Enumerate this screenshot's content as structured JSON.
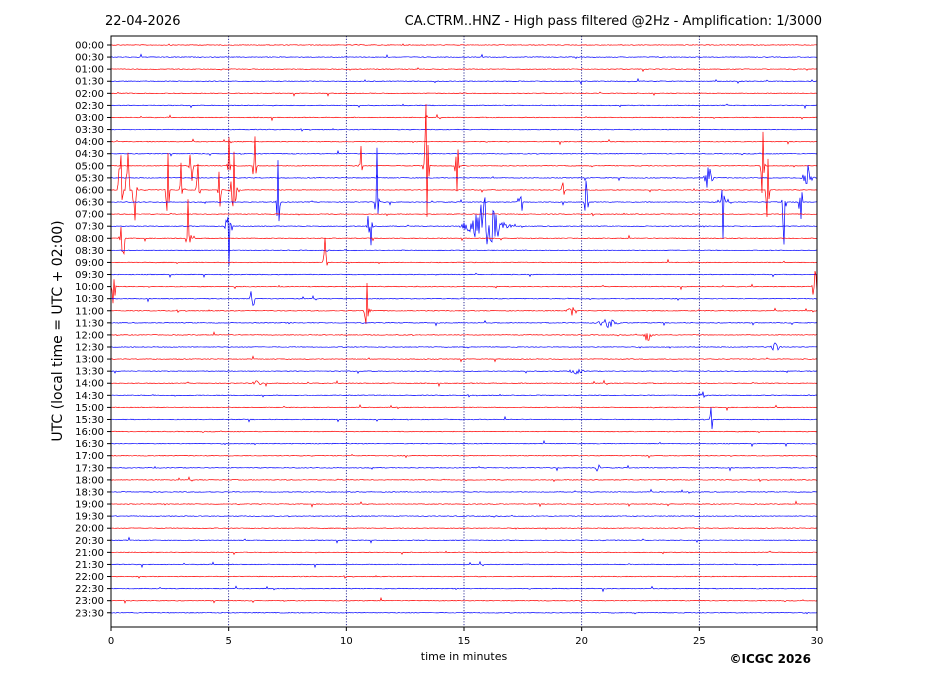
{
  "header": {
    "date": "22-04-2026",
    "title": "CA.CTRM..HNZ - High pass filtered @2Hz - Amplification: 1/3000"
  },
  "footer": {
    "copyright": "©ICGC 2026"
  },
  "chart_data": {
    "type": "line",
    "title": "CA.CTRM..HNZ - High pass filtered @2Hz - Amplification: 1/3000",
    "xlabel": "time in minutes",
    "ylabel": "UTC (local time = UTC + 02:00)",
    "xlim": [
      0,
      30
    ],
    "xticks": [
      0,
      5,
      10,
      15,
      20,
      25,
      30
    ],
    "grid_x": true,
    "row_colors": [
      "#ff0000",
      "#0000ff"
    ],
    "rows": [
      "00:00",
      "00:30",
      "01:00",
      "01:30",
      "02:00",
      "02:30",
      "03:00",
      "03:30",
      "04:00",
      "04:30",
      "05:00",
      "05:30",
      "06:00",
      "06:30",
      "07:00",
      "07:30",
      "08:00",
      "08:30",
      "09:00",
      "09:30",
      "10:00",
      "10:30",
      "11:00",
      "11:30",
      "12:00",
      "12:30",
      "13:00",
      "13:30",
      "14:00",
      "14:30",
      "15:00",
      "15:30",
      "16:00",
      "16:30",
      "17:00",
      "17:30",
      "18:00",
      "18:30",
      "19:00",
      "19:30",
      "20:00",
      "20:30",
      "21:00",
      "21:30",
      "22:00",
      "22:30",
      "23:00",
      "23:30"
    ],
    "events": [
      {
        "row": "05:00",
        "minute": 3.4,
        "amplitude": 1.0,
        "duration": 0.12
      },
      {
        "row": "05:00",
        "minute": 5.0,
        "amplitude": 0.9,
        "duration": 0.12
      },
      {
        "row": "05:00",
        "minute": 6.1,
        "amplitude": 0.8,
        "duration": 0.12
      },
      {
        "row": "05:00",
        "minute": 13.4,
        "amplitude": 1.3,
        "duration": 0.2
      },
      {
        "row": "05:00",
        "minute": 10.6,
        "amplitude": 0.9,
        "duration": 0.12
      },
      {
        "row": "05:00",
        "minute": 14.7,
        "amplitude": 1.0,
        "duration": 0.12
      },
      {
        "row": "05:00",
        "minute": 27.7,
        "amplitude": 1.0,
        "duration": 0.12
      },
      {
        "row": "05:30",
        "minute": 25.4,
        "amplitude": 0.3,
        "duration": 0.3
      },
      {
        "row": "05:30",
        "minute": 29.6,
        "amplitude": 0.3,
        "duration": 0.4
      },
      {
        "row": "06:00",
        "minute": 0.4,
        "amplitude": 1.2,
        "duration": 0.15
      },
      {
        "row": "06:00",
        "minute": 0.7,
        "amplitude": 1.0,
        "duration": 0.15
      },
      {
        "row": "06:00",
        "minute": 1.0,
        "amplitude": 0.8,
        "duration": 0.15
      },
      {
        "row": "06:00",
        "minute": 2.4,
        "amplitude": 1.0,
        "duration": 0.12
      },
      {
        "row": "06:00",
        "minute": 3.0,
        "amplitude": 0.9,
        "duration": 0.12
      },
      {
        "row": "06:00",
        "minute": 3.7,
        "amplitude": 0.8,
        "duration": 0.12
      },
      {
        "row": "06:00",
        "minute": 4.6,
        "amplitude": 0.6,
        "duration": 0.12
      },
      {
        "row": "06:00",
        "minute": 5.2,
        "amplitude": 0.9,
        "duration": 0.2
      },
      {
        "row": "06:00",
        "minute": 19.2,
        "amplitude": 0.9,
        "duration": 0.12
      },
      {
        "row": "06:00",
        "minute": 27.9,
        "amplitude": 0.8,
        "duration": 0.12
      },
      {
        "row": "06:30",
        "minute": 7.1,
        "amplitude": 1.0,
        "duration": 0.12
      },
      {
        "row": "06:30",
        "minute": 11.3,
        "amplitude": 1.0,
        "duration": 0.15
      },
      {
        "row": "06:30",
        "minute": 17.4,
        "amplitude": 1.0,
        "duration": 0.15
      },
      {
        "row": "06:30",
        "minute": 20.2,
        "amplitude": 0.8,
        "duration": 0.12
      },
      {
        "row": "06:30",
        "minute": 26.0,
        "amplitude": 1.0,
        "duration": 0.12
      },
      {
        "row": "06:30",
        "minute": 28.6,
        "amplitude": 1.0,
        "duration": 0.12
      },
      {
        "row": "06:30",
        "minute": 29.3,
        "amplitude": 1.0,
        "duration": 0.12
      },
      {
        "row": "07:30",
        "minute": 15.9,
        "amplitude": 0.5,
        "duration": 1.4
      },
      {
        "row": "07:30",
        "minute": 11.0,
        "amplitude": 0.6,
        "duration": 0.2
      },
      {
        "row": "07:30",
        "minute": 5.0,
        "amplitude": 0.9,
        "duration": 0.2
      },
      {
        "row": "08:00",
        "minute": 3.3,
        "amplitude": 1.0,
        "duration": 0.15
      },
      {
        "row": "08:00",
        "minute": 0.5,
        "amplitude": 0.6,
        "duration": 0.2
      },
      {
        "row": "09:00",
        "minute": 9.1,
        "amplitude": 0.8,
        "duration": 0.12
      },
      {
        "row": "10:00",
        "minute": 0.1,
        "amplitude": 0.6,
        "duration": 0.15
      },
      {
        "row": "10:00",
        "minute": 29.9,
        "amplitude": 0.7,
        "duration": 0.2
      },
      {
        "row": "10:30",
        "minute": 6.0,
        "amplitude": 0.6,
        "duration": 0.15
      },
      {
        "row": "11:00",
        "minute": 10.9,
        "amplitude": 0.8,
        "duration": 0.2
      },
      {
        "row": "11:00",
        "minute": 19.6,
        "amplitude": 0.1,
        "duration": 0.4
      },
      {
        "row": "11:30",
        "minute": 21.1,
        "amplitude": 0.1,
        "duration": 0.8
      },
      {
        "row": "12:00",
        "minute": 22.8,
        "amplitude": 0.15,
        "duration": 0.3
      },
      {
        "row": "12:30",
        "minute": 28.2,
        "amplitude": 0.12,
        "duration": 0.4
      },
      {
        "row": "13:30",
        "minute": 19.8,
        "amplitude": 0.06,
        "duration": 0.6
      },
      {
        "row": "14:00",
        "minute": 6.2,
        "amplitude": 0.06,
        "duration": 0.4
      },
      {
        "row": "14:30",
        "minute": 25.1,
        "amplitude": 0.1,
        "duration": 0.3
      },
      {
        "row": "15:30",
        "minute": 25.5,
        "amplitude": 0.25,
        "duration": 0.2
      },
      {
        "row": "17:30",
        "minute": 20.7,
        "amplitude": 0.2,
        "duration": 0.15
      }
    ]
  }
}
